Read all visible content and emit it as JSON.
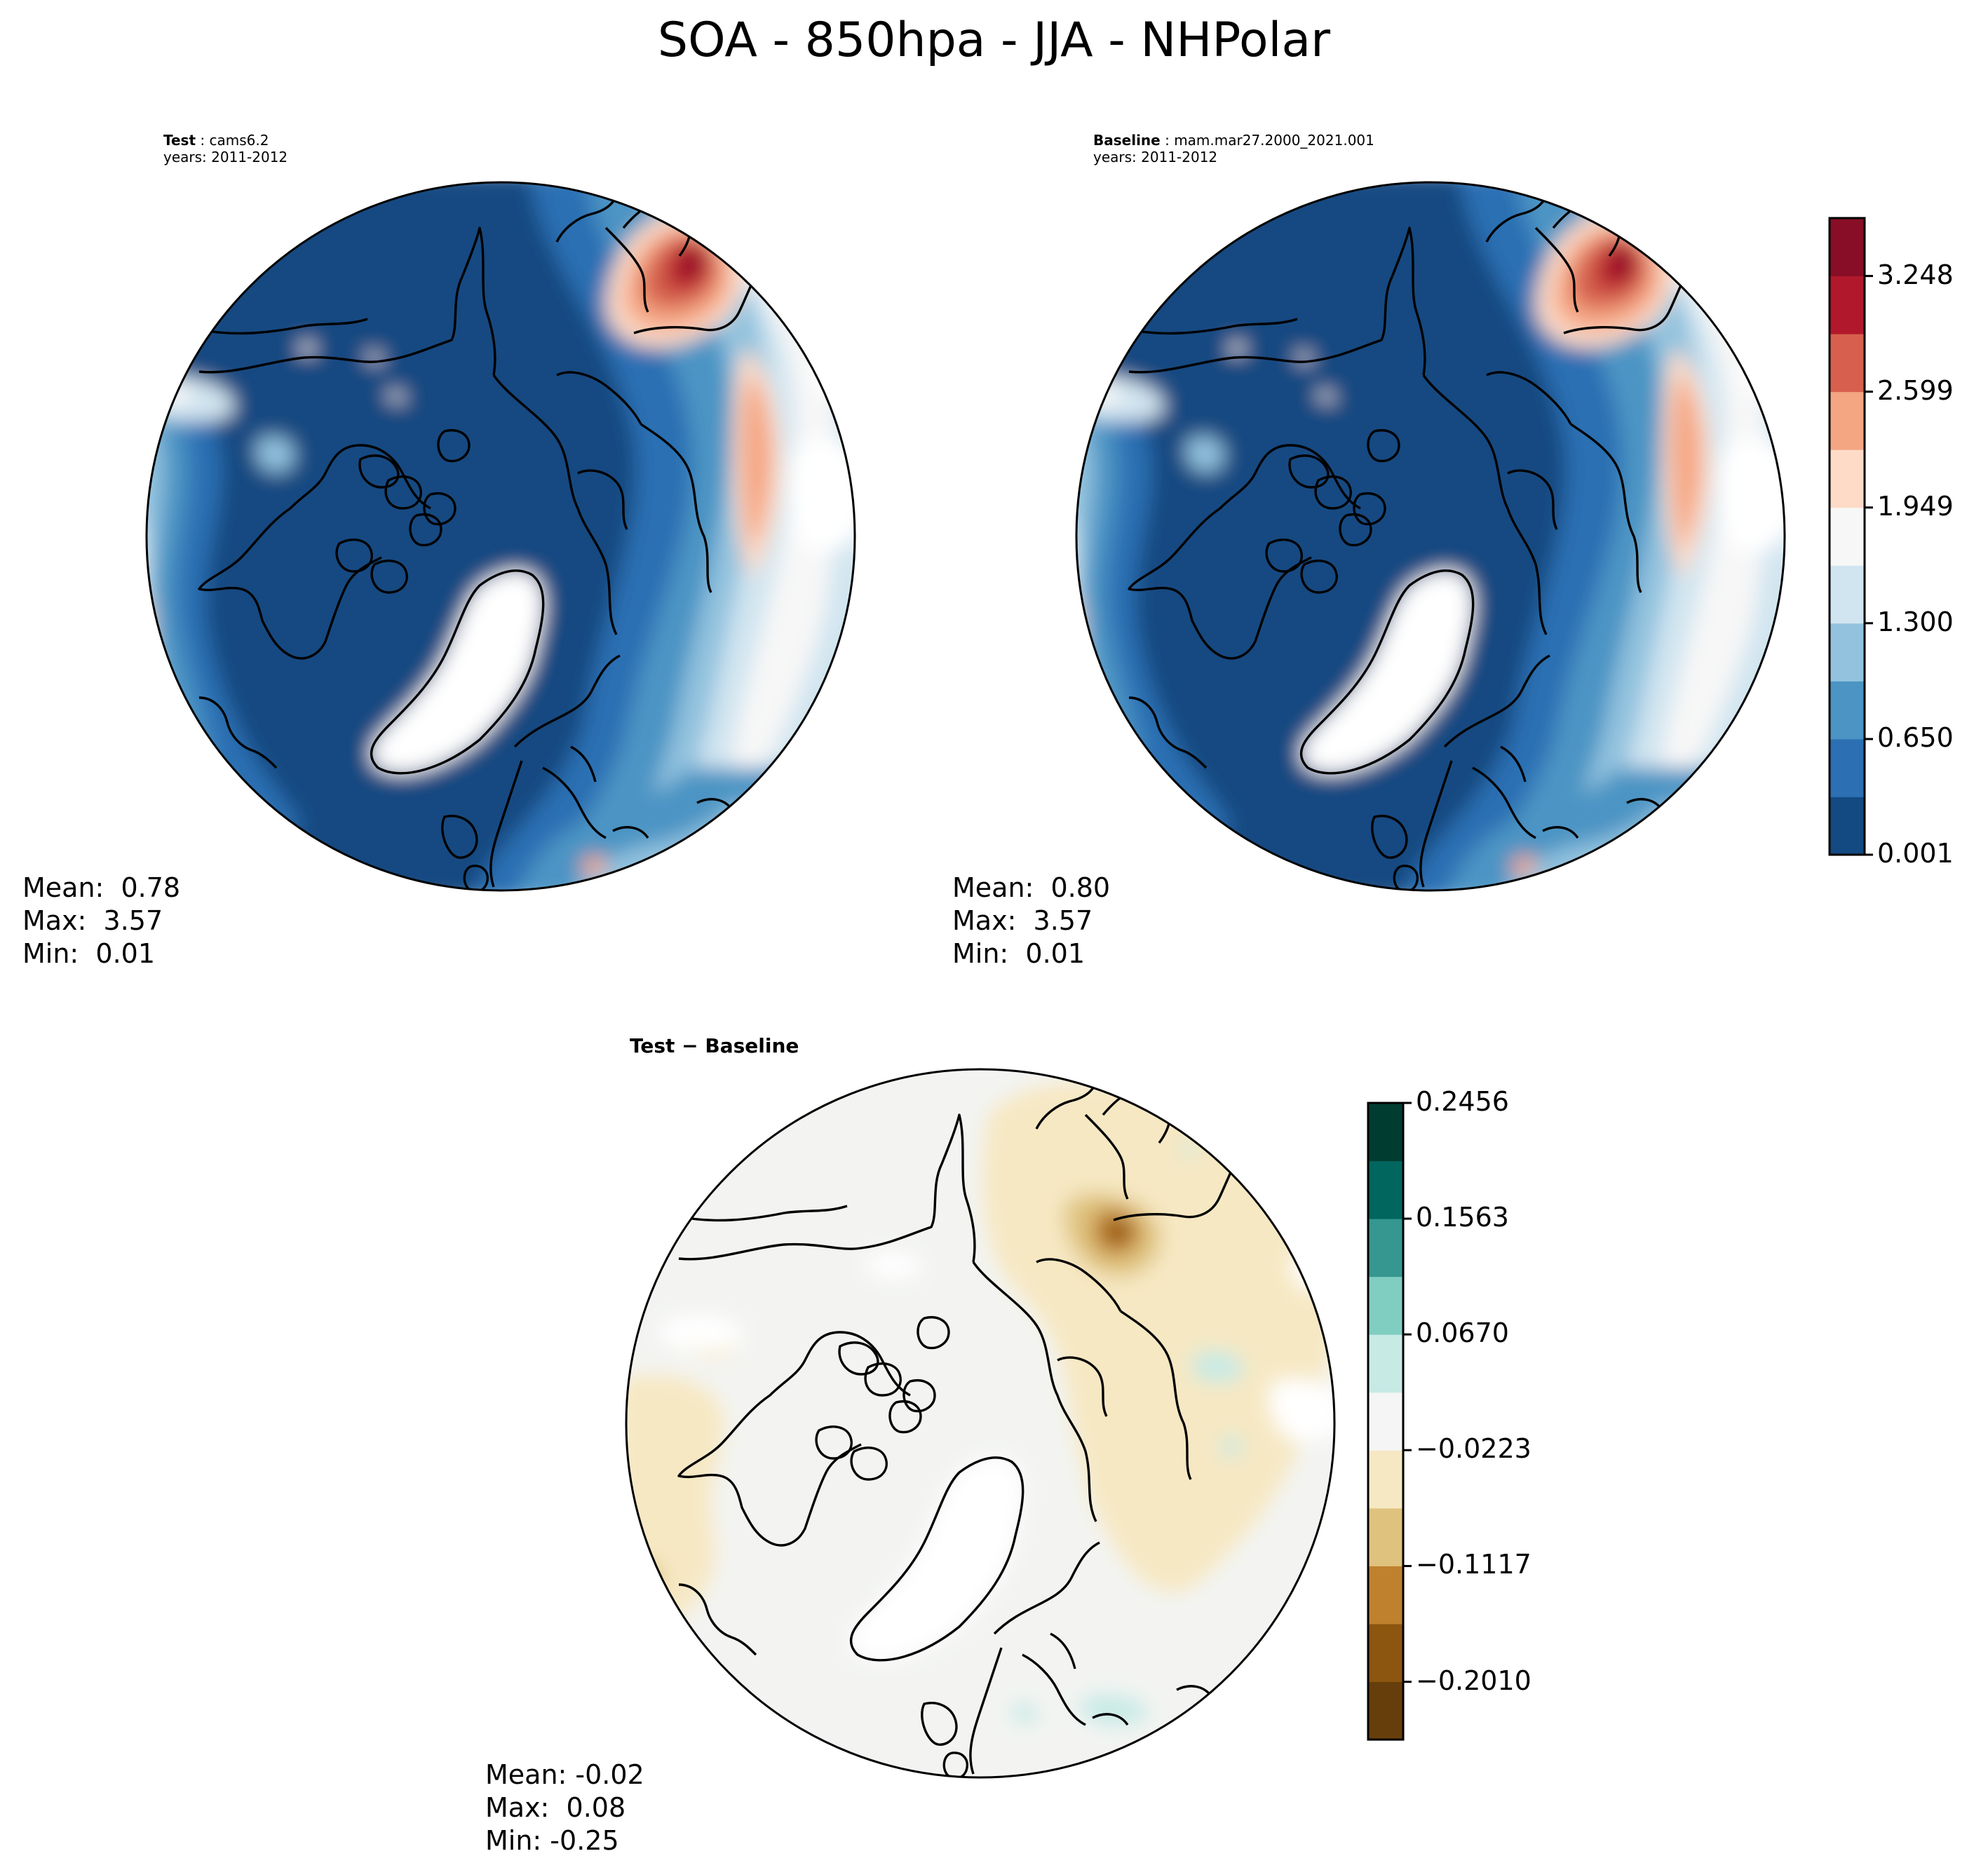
{
  "figure": {
    "title": "SOA - 850hpa - JJA - NHPolar"
  },
  "panels": {
    "test": {
      "label": "Test",
      "case": "cams6.2",
      "years": "years: 2011-2012",
      "stats": {
        "mean": "Mean:  0.78",
        "max": "Max:  3.57",
        "min": "Min:  0.01"
      }
    },
    "baseline": {
      "label": "Baseline",
      "case": "mam.mar27.2000_2021.001",
      "years": "years: 2011-2012",
      "stats": {
        "mean": "Mean:  0.80",
        "max": "Max:  3.57",
        "min": "Min:  0.01"
      }
    },
    "diff": {
      "title": "Test − Baseline",
      "stats": {
        "mean": "Mean: -0.02",
        "max": "Max:  0.08",
        "min": "Min: -0.25"
      }
    }
  },
  "chart_data": [
    {
      "type": "heatmap",
      "projection": "north-polar-stereographic",
      "panel": "test",
      "field_levels": [
        0.001,
        0.326,
        0.65,
        0.975,
        1.3,
        1.625,
        1.949,
        2.274,
        2.599,
        2.924,
        3.248,
        3.573
      ],
      "mean": 0.78,
      "max": 3.57,
      "min": 0.01
    },
    {
      "type": "heatmap",
      "projection": "north-polar-stereographic",
      "panel": "baseline",
      "field_levels": [
        0.001,
        0.326,
        0.65,
        0.975,
        1.3,
        1.625,
        1.949,
        2.274,
        2.599,
        2.924,
        3.248,
        3.573
      ],
      "mean": 0.8,
      "max": 3.57,
      "min": 0.01,
      "colorbar": {
        "ticks": [
          "0.001",
          "0.650",
          "1.300",
          "1.949",
          "2.599",
          "3.248"
        ],
        "tick_values": [
          0.001,
          0.65,
          1.3,
          1.949,
          2.599,
          3.248
        ],
        "range": [
          0.001,
          3.573
        ],
        "colors": [
          "#134a81",
          "#2c6fb3",
          "#4b94c4",
          "#92c2de",
          "#d1e5f0",
          "#f7f7f7",
          "#fddbc7",
          "#f4a582",
          "#d6604d",
          "#b2182b",
          "#870e26"
        ]
      }
    },
    {
      "type": "heatmap",
      "projection": "north-polar-stereographic",
      "panel": "diff",
      "mean": -0.02,
      "max": 0.08,
      "min": -0.25,
      "colorbar": {
        "ticks": [
          "−0.2010",
          "−0.1117",
          "−0.0223",
          "0.0670",
          "0.1563",
          "0.2456"
        ],
        "tick_values": [
          -0.201,
          -0.1117,
          -0.0223,
          0.067,
          0.1563,
          0.2456
        ],
        "range": [
          -0.2456,
          0.2456
        ],
        "colors": [
          "#663e0b",
          "#8c5510",
          "#bf812d",
          "#dfc27d",
          "#f6e8c3",
          "#f5f5f5",
          "#c7eae5",
          "#80cdc1",
          "#35978f",
          "#01665e",
          "#003c30"
        ]
      }
    }
  ]
}
